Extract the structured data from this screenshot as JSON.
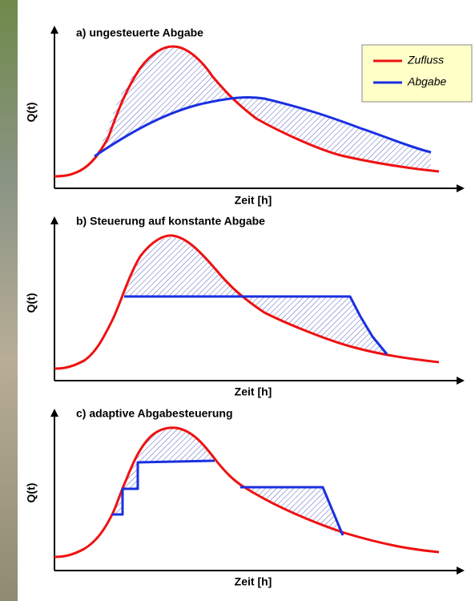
{
  "panels": [
    {
      "title": "a) ungesteuerte Abgabe",
      "y_label": "Q(t)",
      "x_label": "Zeit [h]"
    },
    {
      "title": "b) Steuerung auf konstante Abgabe",
      "y_label": "Q(t)",
      "x_label": "Zeit [h]"
    },
    {
      "title": "c) adaptive Abgabesteuerung",
      "y_label": "Q(t)",
      "x_label": "Zeit [h]"
    }
  ],
  "legend": [
    {
      "label": "Zufluss"
    },
    {
      "label": "Abgabe"
    }
  ]
}
